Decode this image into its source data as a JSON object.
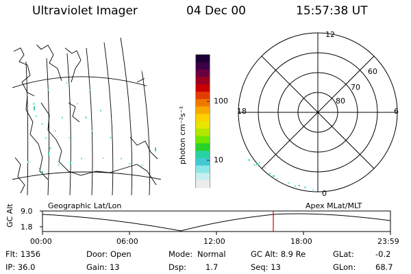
{
  "header": {
    "instrument": "Ultraviolet Imager",
    "date": "04 Dec 00",
    "time": "15:57:38 UT"
  },
  "colorbar": {
    "unit_label": "photon cm⁻²s⁻¹",
    "ticks": [
      "100",
      "10"
    ],
    "colors": [
      "#1a0033",
      "#3b0045",
      "#6a0040",
      "#9a0020",
      "#c80000",
      "#e23c00",
      "#f07800",
      "#f8a800",
      "#fbd200",
      "#e6e600",
      "#b4e600",
      "#6ee600",
      "#28d228",
      "#28d2a0",
      "#46c8d2",
      "#8ce6e6",
      "#c8f0f0",
      "#ececec"
    ]
  },
  "polar_plot": {
    "mlt_labels": {
      "top": "12",
      "left": "18",
      "right": "6",
      "bottom": "0"
    },
    "lat_labels": [
      "60",
      "70",
      "80"
    ]
  },
  "map_panel": {
    "label": "Geographic Lat/Lon"
  },
  "polar_panel": {
    "label": "Apex MLat/MLT"
  },
  "altitude_plot": {
    "axis_label": "GC Alt",
    "y_ticks": [
      "9.0",
      "1.8"
    ],
    "x_ticks": [
      "00:00",
      "06:00",
      "12:00",
      "18:00",
      "23:59"
    ],
    "marker_color": "#cc0000"
  },
  "status": {
    "flt": "Flt: 1356",
    "ip": "IP: 36.0",
    "door": "Door: Open",
    "gain": "Gain: 13",
    "mode_label": "Mode:",
    "mode_value": "Normal",
    "dsp_label": "Dsp:",
    "dsp_value": "1.7",
    "gc_alt": "GC Alt: 8.9 Re",
    "seq": "Seq: 13",
    "glat_label": "GLat:",
    "glat_value": "-0.2",
    "glon_label": "GLon:",
    "glon_value": "68.7"
  }
}
